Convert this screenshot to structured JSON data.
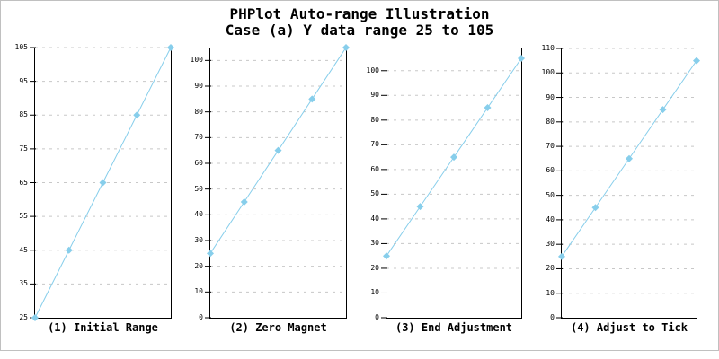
{
  "title": {
    "line1": "PHPlot Auto-range Illustration",
    "line2": "Case (a) Y data range 25 to 105"
  },
  "colors": {
    "line": "#87CEEB",
    "marker": "#87CEEB",
    "grid": "#c8c8c8",
    "axis": "#000000",
    "text": "#000000",
    "frame_border": "#c0c0c0",
    "background": "#ffffff"
  },
  "chart_data": [
    {
      "type": "line",
      "title": "(1) Initial Range",
      "values": [
        25,
        45,
        65,
        85,
        105
      ],
      "ylim": [
        25,
        105
      ],
      "yticks": [
        25,
        35,
        45,
        55,
        65,
        75,
        85,
        95,
        105
      ],
      "grid": "horizontal-dashed",
      "marker": "diamond",
      "legend_position": "none"
    },
    {
      "type": "line",
      "title": "(2) Zero Magnet",
      "values": [
        25,
        45,
        65,
        85,
        105
      ],
      "ylim": [
        0,
        105
      ],
      "yticks": [
        0,
        10,
        20,
        30,
        40,
        50,
        60,
        70,
        80,
        90,
        100
      ],
      "grid": "horizontal-dashed",
      "marker": "diamond",
      "legend_position": "none"
    },
    {
      "type": "line",
      "title": "(3) End Adjustment",
      "values": [
        25,
        45,
        65,
        85,
        105
      ],
      "ylim": [
        0,
        109
      ],
      "yticks": [
        0,
        10,
        20,
        30,
        40,
        50,
        60,
        70,
        80,
        90,
        100
      ],
      "grid": "horizontal-dashed",
      "marker": "diamond",
      "legend_position": "none"
    },
    {
      "type": "line",
      "title": "(4) Adjust to Tick",
      "values": [
        25,
        45,
        65,
        85,
        105
      ],
      "ylim": [
        0,
        110
      ],
      "yticks": [
        0,
        10,
        20,
        30,
        40,
        50,
        60,
        70,
        80,
        90,
        100,
        110
      ],
      "grid": "horizontal-dashed",
      "marker": "diamond",
      "legend_position": "none"
    }
  ]
}
